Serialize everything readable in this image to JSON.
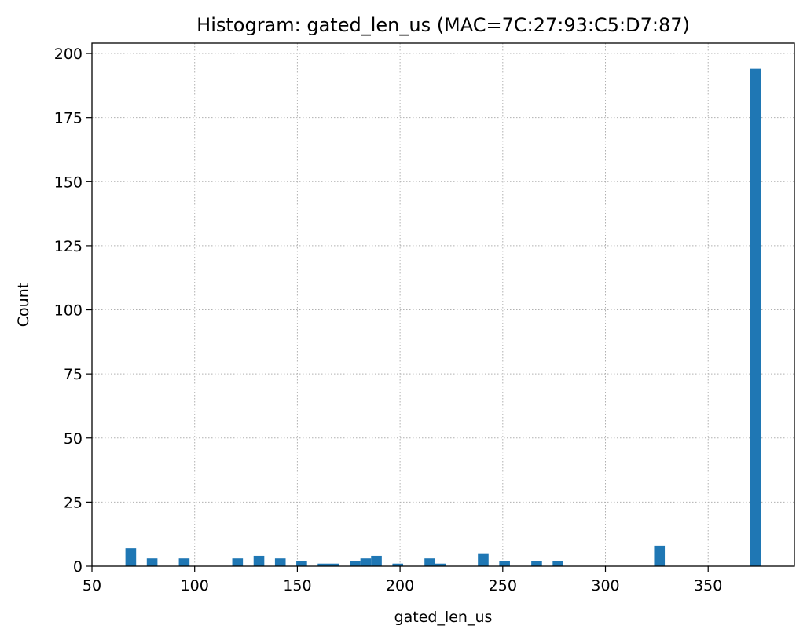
{
  "chart_data": {
    "type": "bar",
    "title": "Histogram: gated_len_us (MAC=7C:27:93:C5:D7:87)",
    "xlabel": "gated_len_us",
    "ylabel": "Count",
    "xlim": [
      50,
      392
    ],
    "ylim": [
      0,
      204
    ],
    "xticks": [
      50,
      100,
      150,
      200,
      250,
      300,
      350
    ],
    "yticks": [
      0,
      25,
      50,
      75,
      100,
      125,
      150,
      175,
      200
    ],
    "grid": true,
    "bar_color": "#1f77b4",
    "bin_width": 5.2,
    "bins": [
      {
        "left": 66.3,
        "count": 7
      },
      {
        "left": 76.7,
        "count": 3
      },
      {
        "left": 92.3,
        "count": 3
      },
      {
        "left": 118.3,
        "count": 3
      },
      {
        "left": 128.7,
        "count": 4
      },
      {
        "left": 139.1,
        "count": 3
      },
      {
        "left": 149.5,
        "count": 2
      },
      {
        "left": 159.9,
        "count": 1
      },
      {
        "left": 165.1,
        "count": 1
      },
      {
        "left": 175.5,
        "count": 2
      },
      {
        "left": 180.7,
        "count": 3
      },
      {
        "left": 185.9,
        "count": 4
      },
      {
        "left": 196.3,
        "count": 1
      },
      {
        "left": 211.9,
        "count": 3
      },
      {
        "left": 217.1,
        "count": 1
      },
      {
        "left": 237.9,
        "count": 5
      },
      {
        "left": 248.3,
        "count": 2
      },
      {
        "left": 263.9,
        "count": 2
      },
      {
        "left": 274.3,
        "count": 2
      },
      {
        "left": 323.7,
        "count": 8
      },
      {
        "left": 370.5,
        "count": 194
      }
    ]
  }
}
